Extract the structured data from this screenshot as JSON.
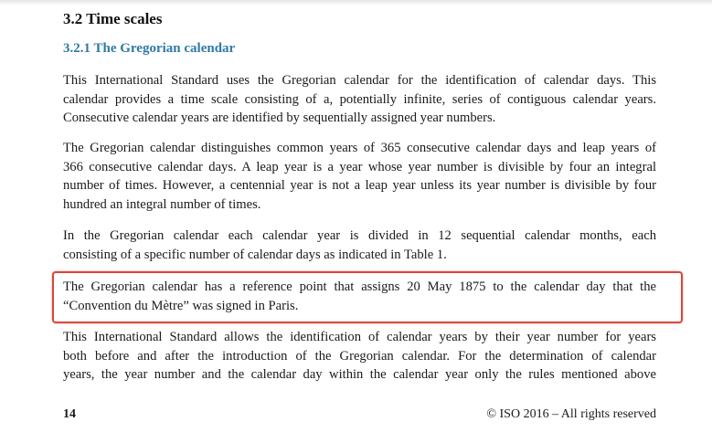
{
  "section_title": "3.2 Time scales",
  "subsection_title": "3.2.1 The Gregorian calendar",
  "paragraphs": [
    {
      "lines": [
        "This International Standard uses the Gregorian calendar for the identification of calendar days. This",
        "calendar provides a time scale consisting of a, potentially infinite, series of contiguous calendar years.",
        "Consecutive calendar years are identified by sequentially assigned year numbers."
      ]
    },
    {
      "lines": [
        "The Gregorian calendar distinguishes common years of 365 consecutive calendar days and leap years of",
        "366 consecutive calendar days. A leap year is a year whose year number is divisible by four an integral",
        "number of times. However, a centennial year is not a leap year unless its year number is divisible by four",
        "hundred an integral number of times."
      ]
    },
    {
      "lines": [
        "In the Gregorian calendar each calendar year is divided in 12 sequential calendar months, each",
        "consisting of a specific number of calendar days as indicated in Table 1."
      ]
    },
    {
      "lines": [
        "The Gregorian calendar has a reference point that assigns 20 May 1875 to the calendar day that the",
        "“Convention du Mètre” was signed in Paris."
      ]
    },
    {
      "lines": [
        "This International Standard allows the identification of calendar years by their year number for years",
        "both before and after the introduction of the Gregorian calendar. For the determination of calendar",
        "years, the year number and the calendar day within the calendar year only the rules mentioned above"
      ]
    }
  ],
  "highlight_color": "#d9473d",
  "footer": {
    "page_number": "14",
    "copyright": "© ISO 2016 – All rights reserved"
  }
}
